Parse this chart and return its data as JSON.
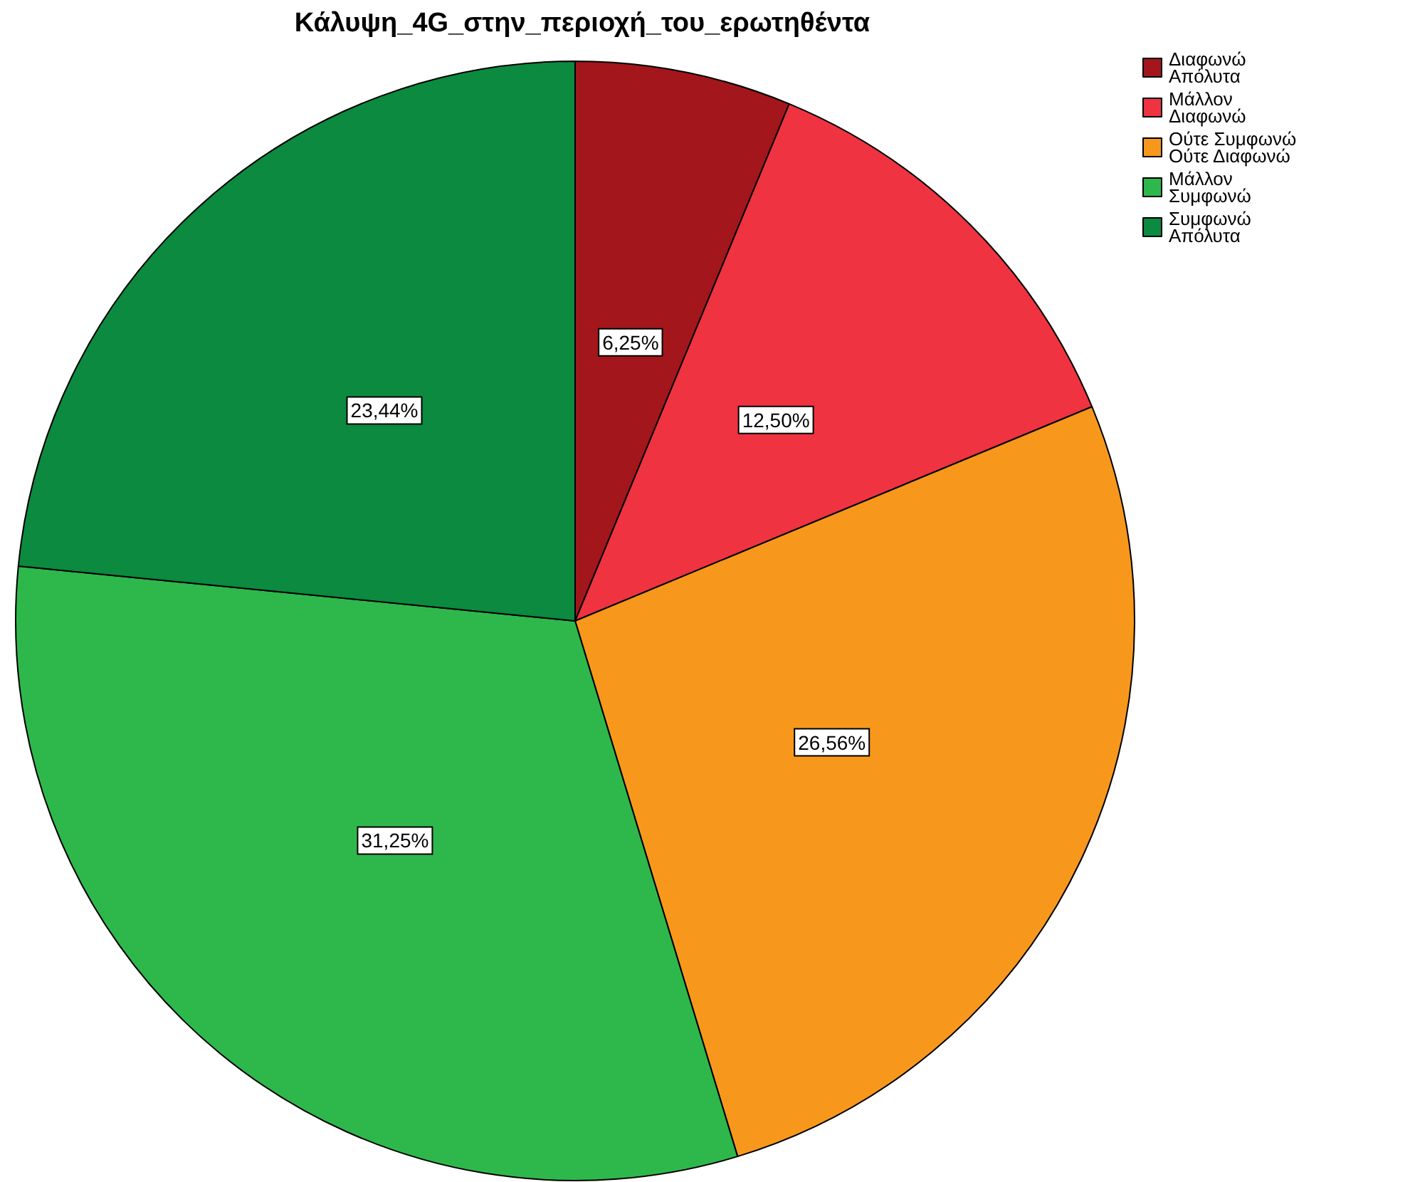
{
  "chart_data": {
    "type": "pie",
    "title": "Κάλυψη_4G_στην_περιοχή_του_ερωτηθέντα",
    "categories": [
      "Διαφωνώ Απόλυτα",
      "Μάλλον Διαφωνώ",
      "Ούτε Συμφωνώ Ούτε Διαφωνώ",
      "Μάλλον Συμφωνώ",
      "Συμφωνώ Απόλυτα"
    ],
    "values": [
      6.25,
      12.5,
      26.56,
      31.25,
      23.44
    ],
    "value_labels": [
      "6,25%",
      "12,50%",
      "26,56%",
      "31,25%",
      "23,44%"
    ],
    "colors": [
      "#a3161b",
      "#ef3340",
      "#f7981d",
      "#2eb84b",
      "#0b8a40"
    ],
    "legend": "top right"
  }
}
